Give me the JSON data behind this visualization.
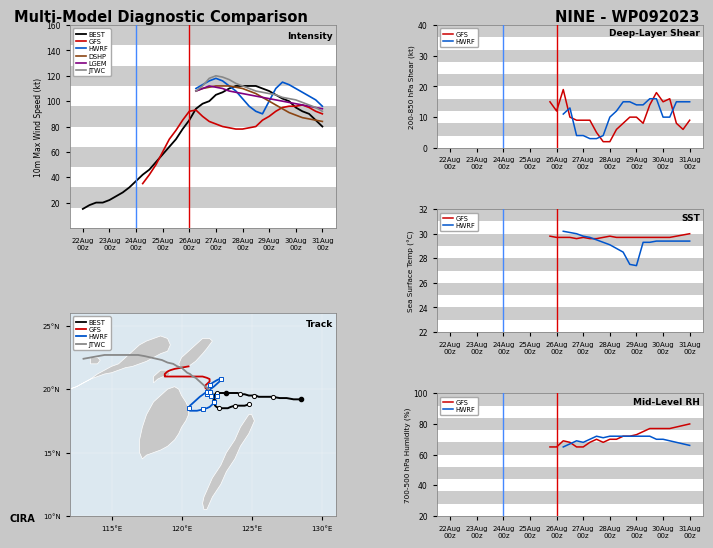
{
  "title_left": "Multi-Model Diagnostic Comparison",
  "title_right": "NINE - WP092023",
  "dates": [
    "22Aug\n00z",
    "23Aug\n00z",
    "24Aug\n00z",
    "25Aug\n00z",
    "26Aug\n00z",
    "27Aug\n00z",
    "28Aug\n00z",
    "29Aug\n00z",
    "30Aug\n00z",
    "31Aug\n00z"
  ],
  "n_pts": 37,
  "blue_vline_idx": 8,
  "red_vline_idx": 16,
  "intensity": {
    "ylabel": "10m Max Wind Speed (kt)",
    "ylim": [
      0,
      160
    ],
    "yticks": [
      20,
      40,
      60,
      80,
      100,
      120,
      140,
      160
    ],
    "BEST": [
      15,
      18,
      20,
      20,
      22,
      25,
      28,
      32,
      37,
      42,
      46,
      52,
      58,
      64,
      70,
      78,
      85,
      94,
      98,
      100,
      105,
      107,
      110,
      112,
      112,
      112,
      112,
      110,
      108,
      105,
      102,
      100,
      95,
      92,
      90,
      85,
      80
    ],
    "GFS": [
      null,
      null,
      null,
      null,
      null,
      null,
      null,
      null,
      null,
      35,
      42,
      50,
      60,
      70,
      77,
      85,
      92,
      93,
      88,
      84,
      82,
      80,
      79,
      78,
      78,
      79,
      80,
      85,
      88,
      92,
      95,
      96,
      96,
      97,
      95,
      92,
      90
    ],
    "HWRF": [
      null,
      null,
      null,
      null,
      null,
      null,
      null,
      null,
      null,
      null,
      null,
      null,
      null,
      null,
      null,
      null,
      null,
      110,
      113,
      116,
      118,
      116,
      112,
      108,
      102,
      96,
      92,
      90,
      100,
      110,
      115,
      113,
      110,
      107,
      104,
      101,
      96
    ],
    "DSHP": [
      null,
      null,
      null,
      null,
      null,
      null,
      null,
      null,
      null,
      null,
      null,
      null,
      null,
      null,
      null,
      null,
      null,
      108,
      110,
      111,
      112,
      112,
      112,
      111,
      110,
      108,
      106,
      103,
      100,
      97,
      94,
      91,
      89,
      87,
      86,
      85,
      84
    ],
    "LGEM": [
      null,
      null,
      null,
      null,
      null,
      null,
      null,
      null,
      null,
      null,
      null,
      null,
      null,
      null,
      null,
      null,
      null,
      108,
      110,
      112,
      111,
      110,
      108,
      107,
      106,
      105,
      104,
      103,
      102,
      101,
      100,
      99,
      98,
      97,
      96,
      95,
      94
    ],
    "JTWC": [
      null,
      null,
      null,
      null,
      null,
      null,
      null,
      null,
      null,
      null,
      null,
      null,
      null,
      null,
      null,
      null,
      null,
      108,
      112,
      118,
      120,
      119,
      117,
      114,
      112,
      110,
      108,
      107,
      106,
      105,
      103,
      102,
      101,
      99,
      97,
      95,
      92
    ]
  },
  "shear": {
    "title": "Deep-Layer Shear",
    "ylabel": "200-850 hPa Shear (kt)",
    "ylim": [
      0,
      40
    ],
    "yticks": [
      0,
      10,
      20,
      30,
      40
    ],
    "GFS": [
      null,
      null,
      null,
      null,
      null,
      null,
      null,
      null,
      null,
      null,
      null,
      null,
      null,
      null,
      null,
      15,
      12,
      19,
      10,
      9,
      9,
      9,
      5,
      2,
      2,
      6,
      8,
      10,
      10,
      8,
      14,
      18,
      15,
      16,
      8,
      6,
      9
    ],
    "HWRF": [
      null,
      null,
      null,
      null,
      null,
      null,
      null,
      null,
      null,
      null,
      null,
      null,
      null,
      null,
      null,
      null,
      null,
      11,
      13,
      4,
      4,
      3,
      3,
      4,
      10,
      12,
      15,
      15,
      14,
      14,
      16,
      16,
      10,
      10,
      15,
      15,
      15
    ]
  },
  "sst": {
    "title": "SST",
    "ylabel": "Sea Surface Temp (°C)",
    "ylim": [
      22,
      32
    ],
    "yticks": [
      22,
      24,
      26,
      28,
      30,
      32
    ],
    "GFS": [
      null,
      null,
      null,
      null,
      null,
      null,
      null,
      null,
      null,
      null,
      null,
      null,
      null,
      null,
      null,
      29.8,
      29.7,
      29.7,
      29.7,
      29.6,
      29.7,
      29.6,
      29.6,
      29.7,
      29.8,
      29.7,
      29.7,
      29.7,
      29.7,
      29.7,
      29.7,
      29.7,
      29.7,
      29.7,
      29.8,
      29.9,
      30.0
    ],
    "HWRF": [
      null,
      null,
      null,
      null,
      null,
      null,
      null,
      null,
      null,
      null,
      null,
      null,
      null,
      null,
      null,
      null,
      null,
      30.2,
      30.1,
      30.0,
      29.8,
      29.7,
      29.5,
      29.3,
      29.1,
      28.8,
      28.5,
      27.5,
      27.4,
      29.3,
      29.3,
      29.4,
      29.4,
      29.4,
      29.4,
      29.4,
      29.4
    ]
  },
  "rh": {
    "title": "Mid-Level RH",
    "ylabel": "700-500 hPa Humidity (%)",
    "ylim": [
      20,
      100
    ],
    "yticks": [
      20,
      40,
      60,
      80,
      100
    ],
    "GFS": [
      null,
      null,
      null,
      null,
      null,
      null,
      null,
      null,
      null,
      null,
      null,
      null,
      null,
      null,
      null,
      65,
      65,
      69,
      68,
      65,
      65,
      68,
      70,
      68,
      70,
      70,
      72,
      72,
      73,
      75,
      77,
      77,
      77,
      77,
      78,
      79,
      80
    ],
    "HWRF": [
      null,
      null,
      null,
      null,
      null,
      null,
      null,
      null,
      null,
      null,
      null,
      null,
      null,
      null,
      null,
      null,
      null,
      65,
      67,
      69,
      68,
      70,
      72,
      71,
      72,
      72,
      72,
      72,
      72,
      72,
      72,
      70,
      70,
      69,
      68,
      67,
      66
    ]
  },
  "colors": {
    "BEST": "#000000",
    "GFS": "#cc0000",
    "HWRF": "#0055cc",
    "DSHP": "#8B4513",
    "LGEM": "#800080",
    "JTWC": "#888888"
  },
  "track": {
    "lon_min": 112,
    "lon_max": 131,
    "lat_min": 10,
    "lat_max": 26,
    "lon_ticks": [
      115,
      120,
      125,
      130
    ],
    "lat_ticks": [
      10,
      15,
      20,
      25
    ],
    "BEST_lon": [
      128.5,
      128.0,
      127.5,
      127.0,
      126.5,
      126.0,
      125.5,
      125.3,
      125.2,
      125.0,
      124.8,
      124.5,
      124.2,
      124.0,
      123.8,
      123.5,
      123.2,
      123.0,
      122.8,
      122.6,
      122.5,
      122.4,
      122.3,
      122.3,
      122.3,
      122.3,
      122.4,
      122.5,
      122.7,
      123.0,
      123.3,
      123.5,
      123.8,
      124.0,
      124.2,
      124.5,
      124.8
    ],
    "BEST_lat": [
      19.2,
      19.2,
      19.3,
      19.3,
      19.4,
      19.4,
      19.4,
      19.5,
      19.5,
      19.5,
      19.5,
      19.6,
      19.6,
      19.7,
      19.7,
      19.7,
      19.7,
      19.7,
      19.7,
      19.7,
      19.7,
      19.6,
      19.5,
      19.3,
      19.1,
      18.9,
      18.7,
      18.6,
      18.5,
      18.5,
      18.5,
      18.6,
      18.7,
      18.7,
      18.7,
      18.7,
      18.8
    ],
    "GFS_lon": [
      122.5,
      122.4,
      122.3,
      122.2,
      122.2,
      122.1,
      122.0,
      122.0,
      122.0,
      122.0,
      121.9,
      121.8,
      121.7,
      121.7,
      121.7,
      121.8,
      121.9,
      122.0,
      122.0,
      122.0,
      121.8,
      121.5,
      121.0,
      120.5,
      120.0,
      119.5,
      119.2,
      119.0,
      118.8,
      118.8,
      118.8,
      118.9,
      119.0,
      119.2,
      119.5,
      120.0,
      120.5
    ],
    "GFS_lat": [
      19.5,
      19.5,
      19.5,
      19.5,
      19.5,
      19.5,
      19.5,
      19.6,
      19.7,
      19.8,
      19.9,
      20.0,
      20.1,
      20.2,
      20.3,
      20.4,
      20.5,
      20.6,
      20.7,
      20.8,
      20.9,
      21.0,
      21.0,
      21.0,
      21.0,
      21.0,
      21.0,
      21.0,
      21.0,
      21.1,
      21.2,
      21.3,
      21.4,
      21.5,
      21.6,
      21.7,
      21.8
    ],
    "HWRF_lon": [
      122.5,
      122.4,
      122.3,
      122.2,
      122.1,
      122.0,
      121.9,
      121.8,
      121.8,
      121.8,
      121.8,
      121.9,
      122.0,
      122.2,
      122.5,
      122.7,
      122.8,
      122.8,
      122.6,
      122.3,
      121.8,
      121.3,
      120.9,
      120.6,
      120.5,
      120.6,
      120.8,
      121.1,
      121.5,
      121.8,
      122.0,
      122.2,
      122.3,
      122.3,
      122.3,
      122.2,
      122.0
    ],
    "HWRF_lat": [
      19.5,
      19.5,
      19.5,
      19.5,
      19.5,
      19.5,
      19.5,
      19.5,
      19.6,
      19.7,
      19.9,
      20.1,
      20.3,
      20.5,
      20.7,
      20.8,
      20.8,
      20.7,
      20.5,
      20.2,
      19.8,
      19.4,
      19.0,
      18.7,
      18.5,
      18.3,
      18.3,
      18.3,
      18.4,
      18.5,
      18.6,
      18.8,
      19.0,
      19.2,
      19.4,
      19.6,
      19.8
    ],
    "JTWC_lon": [
      122.5,
      122.4,
      122.3,
      122.2,
      122.1,
      122.0,
      121.9,
      121.8,
      121.7,
      121.6,
      121.5,
      121.4,
      121.3,
      121.2,
      121.1,
      121.0,
      120.8,
      120.6,
      120.4,
      120.2,
      120.0,
      119.7,
      119.4,
      119.0,
      118.6,
      118.2,
      117.8,
      117.4,
      116.9,
      116.4,
      116.0,
      115.5,
      115.0,
      114.5,
      114.0,
      113.5,
      113.0
    ],
    "JTWC_lat": [
      19.5,
      19.5,
      19.6,
      19.7,
      19.8,
      19.9,
      20.0,
      20.1,
      20.2,
      20.3,
      20.4,
      20.5,
      20.6,
      20.7,
      20.8,
      20.9,
      21.0,
      21.2,
      21.3,
      21.5,
      21.7,
      21.8,
      22.0,
      22.1,
      22.3,
      22.4,
      22.5,
      22.6,
      22.7,
      22.7,
      22.7,
      22.7,
      22.7,
      22.7,
      22.6,
      22.5,
      22.4
    ],
    "land_polys": [
      [
        [
          120.0,
          21.5
        ],
        [
          120.5,
          21.8
        ],
        [
          121.0,
          22.2
        ],
        [
          121.5,
          22.8
        ],
        [
          121.8,
          23.2
        ],
        [
          122.0,
          23.5
        ],
        [
          122.2,
          23.8
        ],
        [
          122.0,
          24.0
        ],
        [
          121.5,
          24.0
        ],
        [
          121.0,
          23.5
        ],
        [
          120.5,
          23.0
        ],
        [
          120.0,
          22.5
        ],
        [
          119.8,
          22.0
        ],
        [
          120.0,
          21.5
        ]
      ],
      [
        [
          118.0,
          20.5
        ],
        [
          118.3,
          20.8
        ],
        [
          118.7,
          21.0
        ],
        [
          119.0,
          21.0
        ],
        [
          119.2,
          21.2
        ],
        [
          119.0,
          21.5
        ],
        [
          118.5,
          21.5
        ],
        [
          118.0,
          21.0
        ],
        [
          118.0,
          20.5
        ]
      ],
      [
        [
          117.2,
          14.5
        ],
        [
          117.5,
          14.8
        ],
        [
          118.0,
          15.0
        ],
        [
          118.5,
          15.2
        ],
        [
          119.0,
          15.5
        ],
        [
          119.5,
          16.0
        ],
        [
          119.8,
          16.5
        ],
        [
          120.0,
          17.0
        ],
        [
          120.3,
          17.5
        ],
        [
          120.5,
          18.0
        ],
        [
          120.5,
          18.5
        ],
        [
          120.3,
          19.0
        ],
        [
          120.0,
          19.5
        ],
        [
          119.8,
          20.0
        ],
        [
          119.5,
          20.2
        ],
        [
          119.0,
          20.0
        ],
        [
          118.5,
          19.5
        ],
        [
          118.0,
          19.0
        ],
        [
          117.5,
          18.0
        ],
        [
          117.2,
          17.0
        ],
        [
          117.0,
          16.0
        ],
        [
          117.0,
          15.0
        ],
        [
          117.2,
          14.5
        ]
      ],
      [
        [
          121.8,
          10.5
        ],
        [
          122.0,
          11.0
        ],
        [
          122.2,
          11.5
        ],
        [
          122.5,
          12.0
        ],
        [
          122.8,
          12.5
        ],
        [
          123.0,
          13.0
        ],
        [
          123.2,
          13.5
        ],
        [
          123.5,
          14.0
        ],
        [
          123.8,
          14.5
        ],
        [
          124.0,
          15.0
        ],
        [
          124.2,
          15.5
        ],
        [
          124.5,
          16.0
        ],
        [
          124.8,
          16.5
        ],
        [
          125.0,
          17.0
        ],
        [
          125.2,
          17.5
        ],
        [
          125.0,
          18.0
        ],
        [
          124.8,
          18.0
        ],
        [
          124.5,
          17.5
        ],
        [
          124.2,
          17.0
        ],
        [
          124.0,
          16.5
        ],
        [
          123.8,
          16.0
        ],
        [
          123.5,
          15.5
        ],
        [
          123.2,
          15.0
        ],
        [
          123.0,
          14.5
        ],
        [
          122.8,
          14.0
        ],
        [
          122.5,
          13.5
        ],
        [
          122.2,
          13.0
        ],
        [
          122.0,
          12.5
        ],
        [
          121.8,
          12.0
        ],
        [
          121.6,
          11.5
        ],
        [
          121.5,
          11.0
        ],
        [
          121.6,
          10.5
        ],
        [
          121.8,
          10.5
        ]
      ],
      [
        [
          112.0,
          20.0
        ],
        [
          112.5,
          20.2
        ],
        [
          113.0,
          20.5
        ],
        [
          113.5,
          20.8
        ],
        [
          114.0,
          21.0
        ],
        [
          114.5,
          21.2
        ],
        [
          115.0,
          21.3
        ],
        [
          115.5,
          21.5
        ],
        [
          116.0,
          21.7
        ],
        [
          116.5,
          21.8
        ],
        [
          117.0,
          22.0
        ],
        [
          117.5,
          22.2
        ],
        [
          118.0,
          22.5
        ],
        [
          118.5,
          22.8
        ],
        [
          119.0,
          23.0
        ],
        [
          119.2,
          23.5
        ],
        [
          119.0,
          24.0
        ],
        [
          118.5,
          24.2
        ],
        [
          118.0,
          24.0
        ],
        [
          117.5,
          23.8
        ],
        [
          117.0,
          23.5
        ],
        [
          116.5,
          23.0
        ],
        [
          116.0,
          22.5
        ],
        [
          115.5,
          22.0
        ],
        [
          115.0,
          21.8
        ],
        [
          114.5,
          21.5
        ],
        [
          114.0,
          21.2
        ],
        [
          113.5,
          20.8
        ],
        [
          113.0,
          20.5
        ],
        [
          112.5,
          20.2
        ],
        [
          112.0,
          20.0
        ]
      ],
      [
        [
          113.5,
          22.5
        ],
        [
          114.0,
          22.5
        ],
        [
          114.2,
          22.3
        ],
        [
          114.0,
          22.0
        ],
        [
          113.5,
          22.0
        ],
        [
          113.5,
          22.5
        ]
      ]
    ]
  }
}
